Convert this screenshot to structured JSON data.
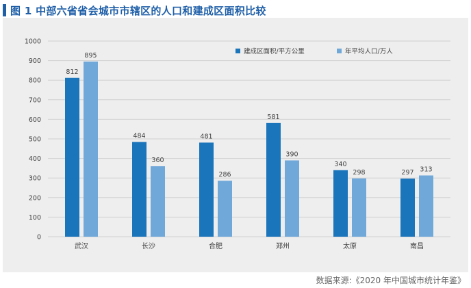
{
  "figure": {
    "title": "图 1  中部六省省会城市市辖区的人口和建成区面积比较",
    "source": "数据来源:《2020 年中国城市统计年鉴》"
  },
  "colors": {
    "title": "#1f5fa8",
    "panel_bg": "#eeeeee",
    "series1": "#1b75bb",
    "series2": "#70a8da",
    "grid": "#d0d0d0",
    "text": "#404040"
  },
  "chart_data": {
    "type": "bar",
    "title": "",
    "xlabel": "",
    "ylabel": "",
    "categories": [
      "武汉",
      "长沙",
      "合肥",
      "郑州",
      "太原",
      "南昌"
    ],
    "series": [
      {
        "name": "建成区面积/平方公里",
        "values": [
          812,
          484,
          481,
          581,
          340,
          297
        ]
      },
      {
        "name": "年平均人口/万人",
        "values": [
          895,
          360,
          286,
          390,
          298,
          313
        ]
      }
    ],
    "ylim": [
      0,
      1000
    ],
    "yticks": [
      0,
      100,
      200,
      300,
      400,
      500,
      600,
      700,
      800,
      900,
      1000
    ],
    "grid": true,
    "legend_position": "top-right"
  }
}
